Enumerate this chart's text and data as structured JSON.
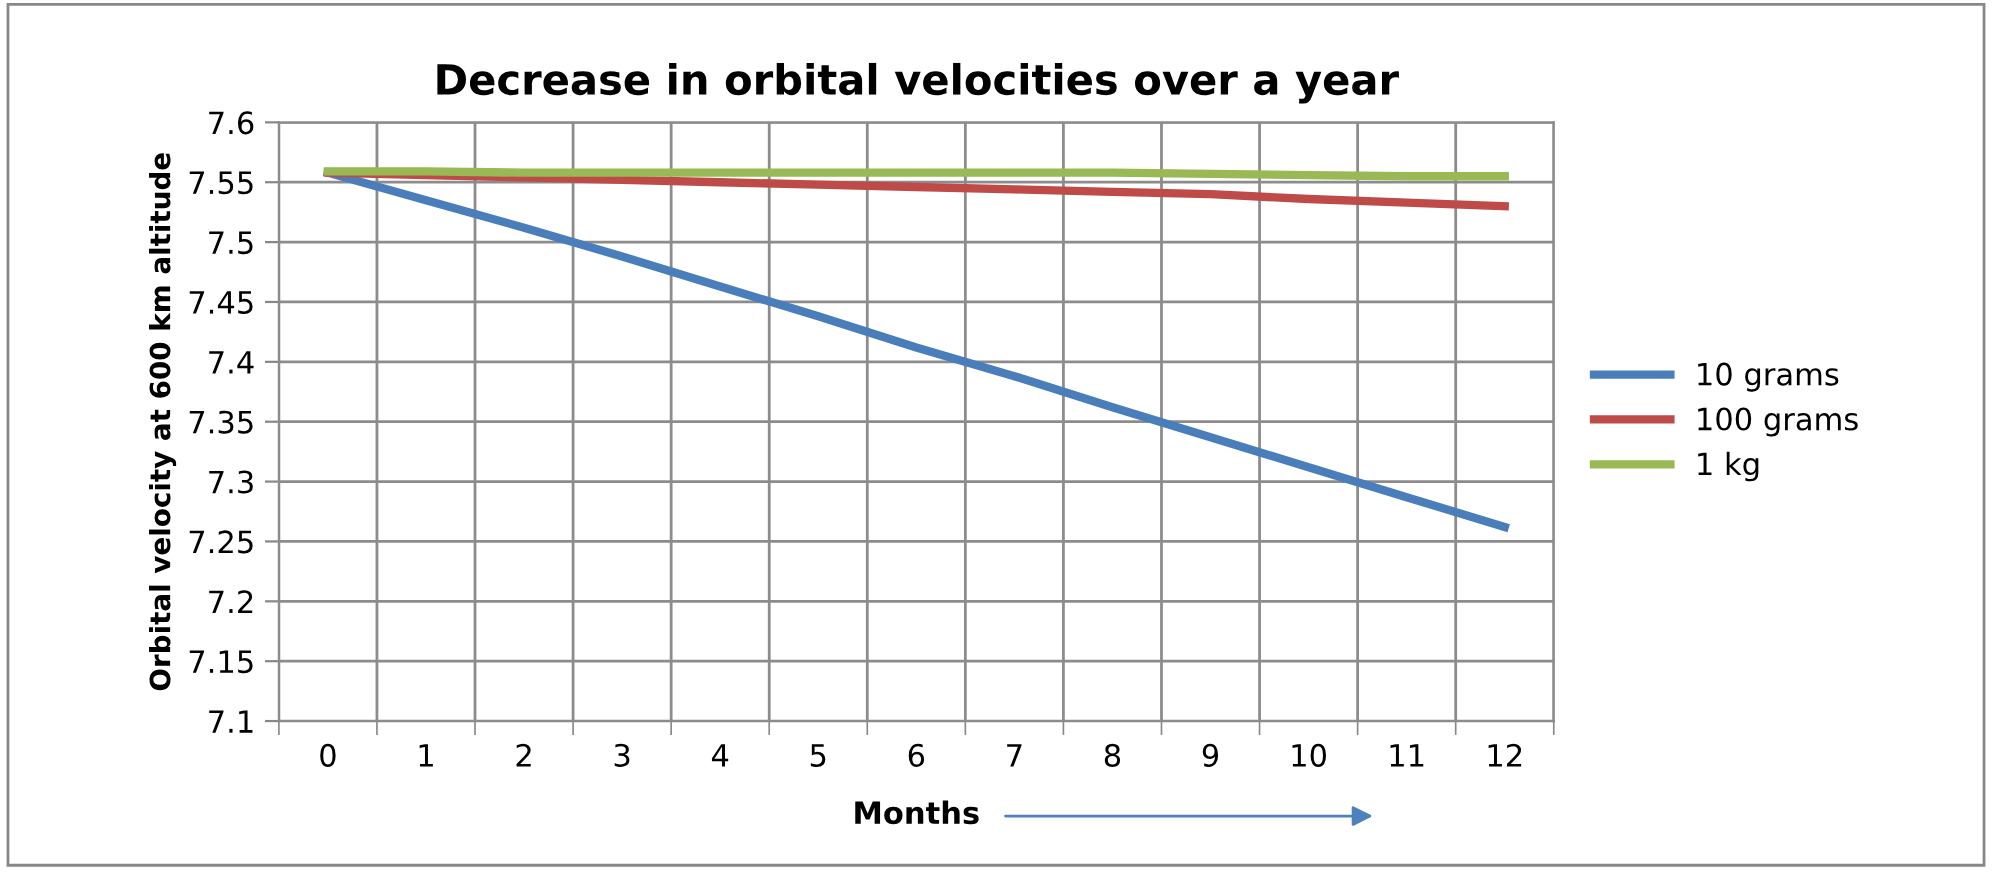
{
  "chart_data": {
    "type": "line",
    "title": "Decrease in orbital velocities over a year",
    "xlabel": "Months",
    "ylabel": "Orbital velocity at 600 km altitude",
    "categories": [
      "0",
      "1",
      "2",
      "3",
      "4",
      "5",
      "6",
      "7",
      "8",
      "9",
      "10",
      "11",
      "12"
    ],
    "series": [
      {
        "name": "10 grams",
        "color": "#4a7ebb",
        "values": [
          7.558,
          7.535,
          7.512,
          7.488,
          7.463,
          7.438,
          7.412,
          7.388,
          7.362,
          7.337,
          7.312,
          7.287,
          7.262
        ]
      },
      {
        "name": "100 grams",
        "color": "#be4b48",
        "values": [
          7.558,
          7.556,
          7.554,
          7.552,
          7.55,
          7.548,
          7.546,
          7.544,
          7.542,
          7.54,
          7.536,
          7.533,
          7.53
        ]
      },
      {
        "name": "1 kg",
        "color": "#98b954",
        "values": [
          7.559,
          7.559,
          7.558,
          7.558,
          7.558,
          7.558,
          7.558,
          7.558,
          7.558,
          7.557,
          7.556,
          7.555,
          7.555
        ]
      }
    ],
    "ylim": [
      7.1,
      7.6
    ],
    "yticks": [
      7.1,
      7.15,
      7.2,
      7.25,
      7.3,
      7.35,
      7.4,
      7.45,
      7.5,
      7.55,
      7.6
    ],
    "grid": true,
    "legend": "right",
    "marker": "none",
    "line_style": "solid"
  }
}
